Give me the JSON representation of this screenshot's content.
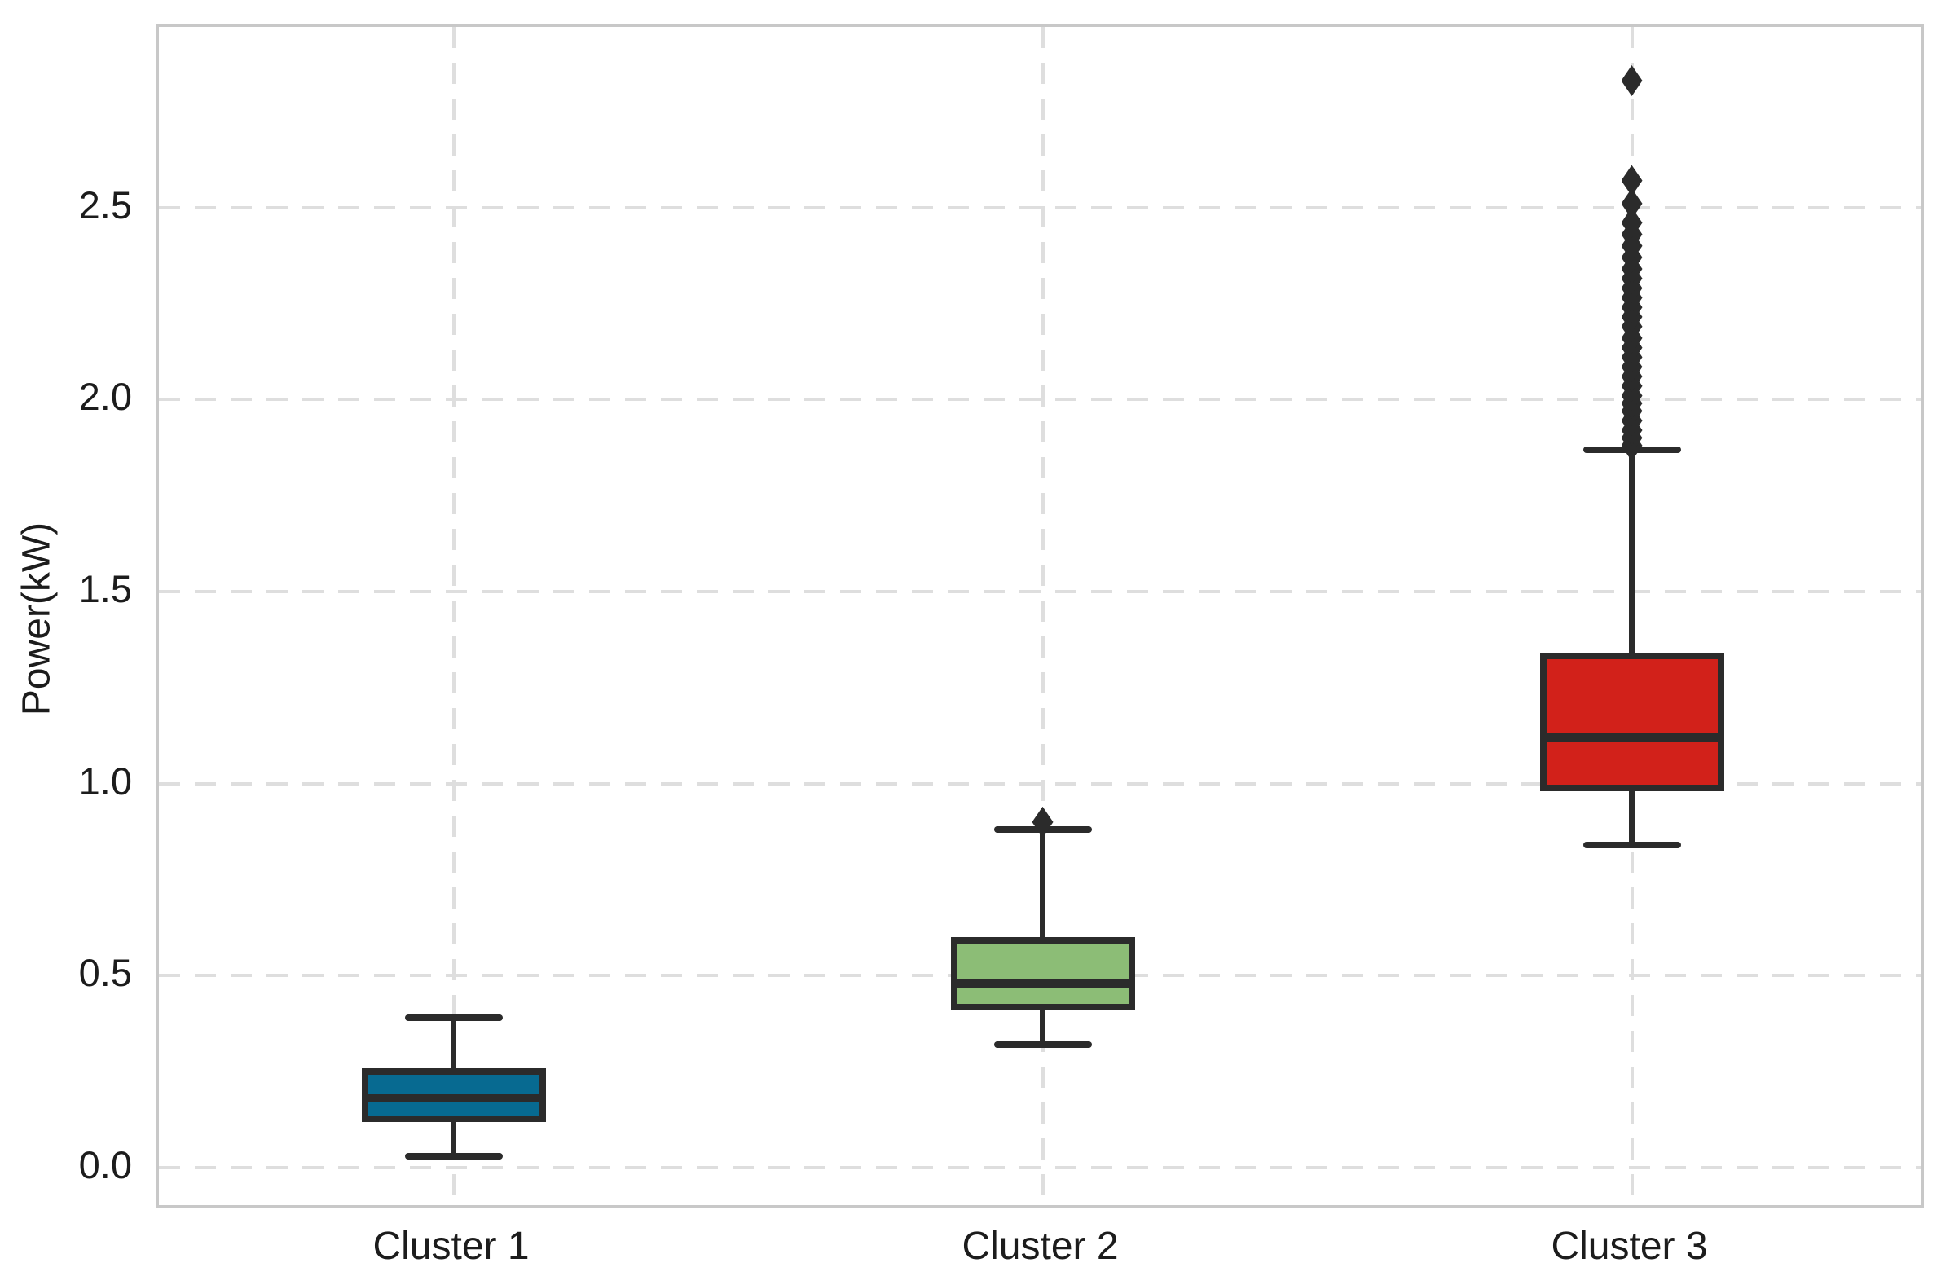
{
  "figure": {
    "background": "#ffffff",
    "y_axis_label": "Power(kW)",
    "x_axis_label": ""
  },
  "chart_data": {
    "type": "boxplot",
    "title": "",
    "xlabel": "",
    "ylabel": "Power(kW)",
    "categories": [
      "Cluster 1",
      "Cluster 2",
      "Cluster 3"
    ],
    "ylim": [
      -0.11,
      2.97
    ],
    "yticks": [
      {
        "value": 0.0,
        "label": "0.0"
      },
      {
        "value": 0.5,
        "label": "0.5"
      },
      {
        "value": 1.0,
        "label": "1.0"
      },
      {
        "value": 1.5,
        "label": "1.5"
      },
      {
        "value": 2.0,
        "label": "2.0"
      },
      {
        "value": 2.5,
        "label": "2.5"
      }
    ],
    "grid": {
      "horizontal": true,
      "vertical": true,
      "style": "dashed",
      "color": "#dedede"
    },
    "legend": "none",
    "series": [
      {
        "name": "Cluster 1",
        "fill_color": "#076a91",
        "whisker_low": 0.03,
        "q1": 0.12,
        "median": 0.18,
        "q3": 0.26,
        "whisker_high": 0.39,
        "outliers": []
      },
      {
        "name": "Cluster 2",
        "fill_color": "#8cbd76",
        "whisker_low": 0.32,
        "q1": 0.41,
        "median": 0.48,
        "q3": 0.6,
        "whisker_high": 0.88,
        "outliers": [
          0.9
        ]
      },
      {
        "name": "Cluster 3",
        "fill_color": "#d2211a",
        "whisker_low": 0.84,
        "q1": 0.98,
        "median": 1.12,
        "q3": 1.34,
        "whisker_high": 1.87,
        "outliers": [
          1.88,
          1.9,
          1.92,
          1.945,
          1.97,
          1.99,
          2.01,
          2.035,
          2.06,
          2.085,
          2.11,
          2.135,
          2.16,
          2.19,
          2.215,
          2.24,
          2.265,
          2.29,
          2.315,
          2.34,
          2.37,
          2.4,
          2.43,
          2.46,
          2.51,
          2.57,
          2.83
        ]
      }
    ],
    "style_colors": {
      "line_color": "#2b2b2b",
      "spine_color": "#c8c8c8",
      "grid_color": "#dedede",
      "text_color": "#1c1c1c"
    }
  }
}
